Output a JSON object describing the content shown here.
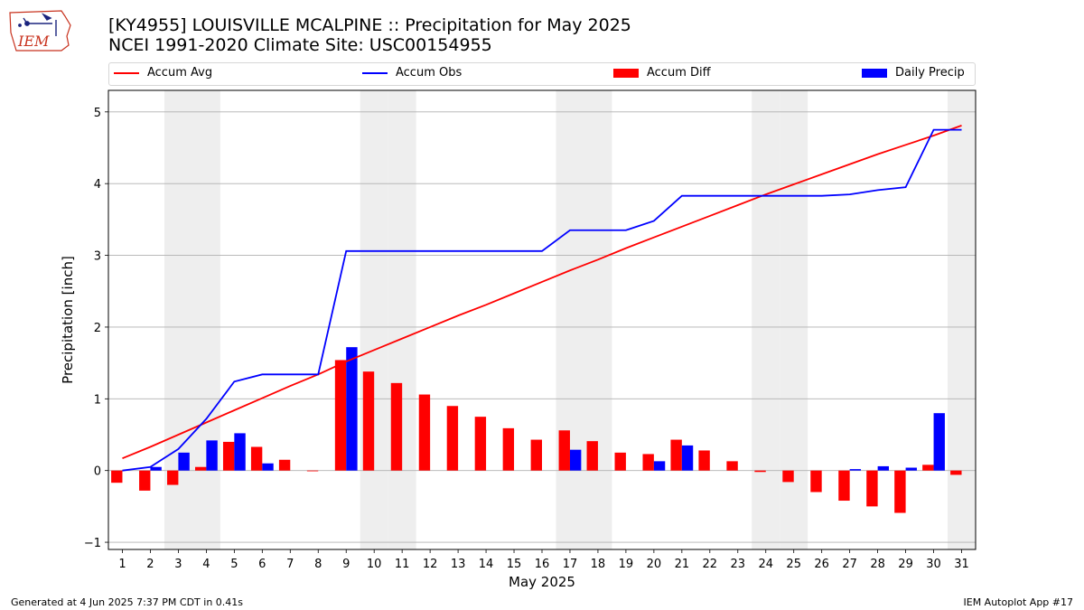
{
  "logo_text": "IEM",
  "title_line1": "[KY4955] LOUISVILLE MCALPINE :: Precipitation for May 2025",
  "title_line2": "NCEI 1991-2020 Climate Site: USC00154955",
  "footer_left": "Generated at 4 Jun 2025 7:37 PM CDT in 0.41s",
  "footer_right": "IEM Autoplot App #17",
  "colors": {
    "avg": "#ff0000",
    "obs": "#0000ff",
    "diff": "#ff0000",
    "daily": "#0000ff",
    "weekend": "#eeeeee",
    "grid": "#b0b0b0"
  },
  "chart_data": {
    "type": "bar",
    "xlabel": "May 2025",
    "ylabel": "Precipitation [inch]",
    "xlim": [
      0.5,
      31.5
    ],
    "ylim": [
      -1.1,
      5.3
    ],
    "yticks": [
      -1,
      0,
      1,
      2,
      3,
      4,
      5
    ],
    "grid": "horizontal",
    "legend": {
      "placement": "top",
      "entries": [
        {
          "label": "Accum Avg",
          "kind": "line",
          "series": "avg"
        },
        {
          "label": "Accum Obs",
          "kind": "line",
          "series": "obs"
        },
        {
          "label": "Accum Diff",
          "kind": "bar",
          "series": "diff"
        },
        {
          "label": "Daily Precip",
          "kind": "bar",
          "series": "daily"
        }
      ]
    },
    "days": [
      1,
      2,
      3,
      4,
      5,
      6,
      7,
      8,
      9,
      10,
      11,
      12,
      13,
      14,
      15,
      16,
      17,
      18,
      19,
      20,
      21,
      22,
      23,
      24,
      25,
      26,
      27,
      28,
      29,
      30,
      31
    ],
    "weekend_days": [
      3,
      4,
      10,
      11,
      17,
      18,
      24,
      25,
      31
    ],
    "series": [
      {
        "name": "Accum Avg",
        "key": "avg",
        "type": "line",
        "values": [
          0.17,
          0.33,
          0.5,
          0.67,
          0.84,
          1.01,
          1.18,
          1.34,
          1.52,
          1.68,
          1.84,
          2.0,
          2.16,
          2.31,
          2.47,
          2.63,
          2.79,
          2.94,
          3.1,
          3.25,
          3.4,
          3.55,
          3.7,
          3.85,
          3.99,
          4.13,
          4.27,
          4.41,
          4.54,
          4.67,
          4.81
        ]
      },
      {
        "name": "Accum Obs",
        "key": "obs",
        "type": "line",
        "values": [
          0.0,
          0.05,
          0.3,
          0.72,
          1.24,
          1.34,
          1.34,
          1.34,
          3.06,
          3.06,
          3.06,
          3.06,
          3.06,
          3.06,
          3.06,
          3.06,
          3.35,
          3.35,
          3.35,
          3.48,
          3.83,
          3.83,
          3.83,
          3.83,
          3.83,
          3.83,
          3.85,
          3.91,
          3.95,
          4.75,
          4.75
        ]
      },
      {
        "name": "Accum Diff",
        "key": "diff",
        "type": "bar",
        "values": [
          -0.17,
          -0.28,
          -0.2,
          0.05,
          0.4,
          0.33,
          0.15,
          -0.01,
          1.54,
          1.38,
          1.22,
          1.06,
          0.9,
          0.75,
          0.59,
          0.43,
          0.56,
          0.41,
          0.25,
          0.23,
          0.43,
          0.28,
          0.13,
          -0.02,
          -0.16,
          -0.3,
          -0.42,
          -0.5,
          -0.59,
          0.08,
          -0.06
        ]
      },
      {
        "name": "Daily Precip",
        "key": "daily",
        "type": "bar",
        "values": [
          0.0,
          0.05,
          0.25,
          0.42,
          0.52,
          0.1,
          0.0,
          0.0,
          1.72,
          0.0,
          0.0,
          0.0,
          0.0,
          0.0,
          0.0,
          0.0,
          0.29,
          0.0,
          0.0,
          0.13,
          0.35,
          0.0,
          0.0,
          0.0,
          0.0,
          0.0,
          0.02,
          0.06,
          0.04,
          0.8,
          0.0
        ]
      }
    ]
  }
}
